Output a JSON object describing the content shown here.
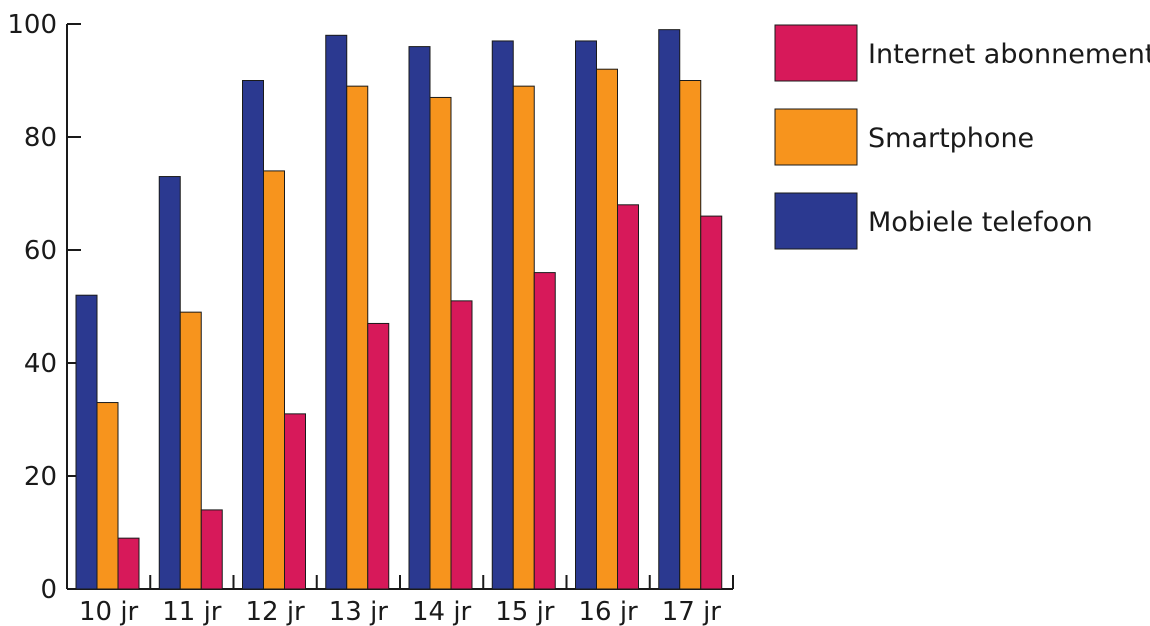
{
  "chart_data": {
    "type": "bar",
    "categories": [
      "10 jr",
      "11 jr",
      "12 jr",
      "13 jr",
      "14 jr",
      "15 jr",
      "16 jr",
      "17 jr"
    ],
    "series": [
      {
        "name": "Mobiele telefoon",
        "color": "#2b3990",
        "values": [
          52,
          73,
          90,
          98,
          96,
          97,
          97,
          99
        ]
      },
      {
        "name": "Smartphone",
        "color": "#f7941d",
        "values": [
          33,
          49,
          74,
          89,
          87,
          89,
          92,
          90
        ]
      },
      {
        "name": "Internet abonnement",
        "color": "#d7195a",
        "values": [
          9,
          14,
          31,
          47,
          51,
          56,
          68,
          66
        ]
      }
    ],
    "legend_order": [
      "Internet abonnement",
      "Smartphone",
      "Mobiele telefoon"
    ],
    "ylim": [
      0,
      100
    ],
    "yticks": [
      "0",
      "20",
      "40",
      "60",
      "80",
      "100"
    ],
    "grid": false,
    "legend_position": "right",
    "title": "",
    "xlabel": "",
    "ylabel": ""
  }
}
